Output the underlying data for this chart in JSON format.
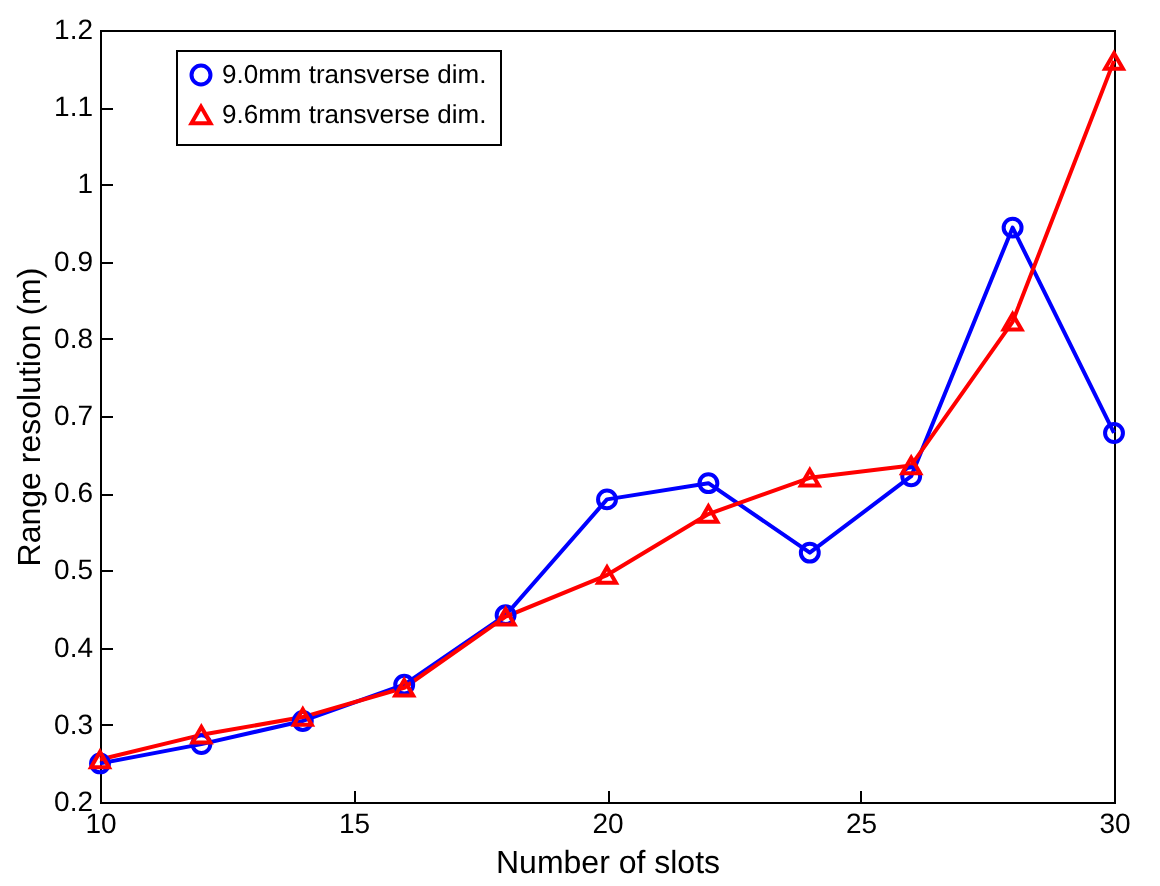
{
  "chart_data": {
    "type": "line",
    "xlabel": "Number of slots",
    "ylabel": "Range resolution (m)",
    "x": [
      10,
      12,
      14,
      16,
      18,
      20,
      22,
      24,
      26,
      28,
      30
    ],
    "series": [
      {
        "name": "9.0mm transverse dim.",
        "color": "#0000ff",
        "marker": "circle",
        "values": [
          0.25,
          0.275,
          0.305,
          0.352,
          0.442,
          0.592,
          0.613,
          0.523,
          0.622,
          0.944,
          0.678
        ]
      },
      {
        "name": "9.6mm transverse dim.",
        "color": "#ff0000",
        "marker": "triangle",
        "values": [
          0.255,
          0.287,
          0.31,
          0.348,
          0.44,
          0.494,
          0.573,
          0.62,
          0.636,
          0.822,
          1.16
        ]
      }
    ],
    "xlim": [
      10,
      30
    ],
    "xticks": [
      10,
      15,
      20,
      25,
      30
    ],
    "ylim": [
      0.2,
      1.2
    ],
    "yticks": [
      0.2,
      0.3,
      0.4,
      0.5,
      0.6,
      0.7,
      0.8,
      0.9,
      1,
      1.1,
      1.2
    ],
    "legend": "top left",
    "grid": false,
    "line_style": "solid"
  }
}
